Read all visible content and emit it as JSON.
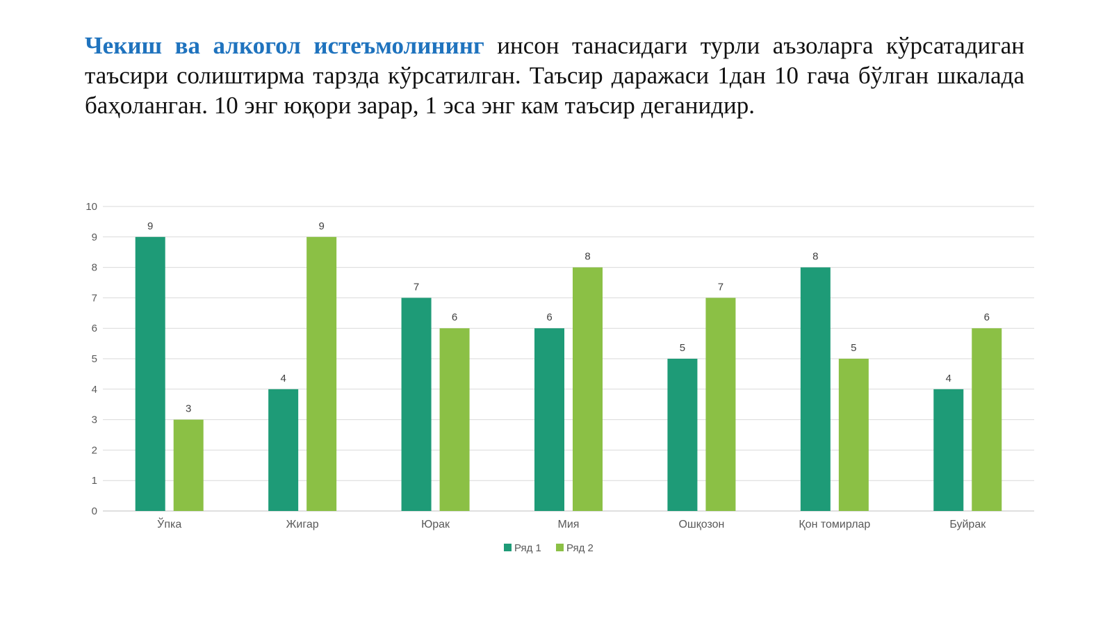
{
  "intro": {
    "highlight": "Чекиш ва алкогол истеъмолининг",
    "rest": " инсон танасидаги турли аъзоларга кўрсатадиган таъсири солиштирма тарзда кўрсатилган. Таъсир даражаси 1дан 10 гача бўлган шкалада баҳоланган. 10 энг юқори зарар, 1 эса энг кам таъсир деганидир."
  },
  "chart_data": {
    "type": "bar",
    "categories": [
      "Ўпка",
      "Жигар",
      "Юрак",
      "Мия",
      "Ошқозон",
      "Қон томирлар",
      "Буйрак"
    ],
    "series": [
      {
        "name": "Ряд 1",
        "values": [
          9,
          4,
          7,
          6,
          5,
          8,
          4
        ],
        "color": "#1e9b77"
      },
      {
        "name": "Ряд 2",
        "values": [
          3,
          9,
          6,
          8,
          7,
          5,
          6
        ],
        "color": "#8bc045"
      }
    ],
    "ylim": [
      0,
      10
    ],
    "yticks": [
      0,
      1,
      2,
      3,
      4,
      5,
      6,
      7,
      8,
      9,
      10
    ],
    "grid": true,
    "data_labels": true,
    "legend_position": "bottom"
  }
}
